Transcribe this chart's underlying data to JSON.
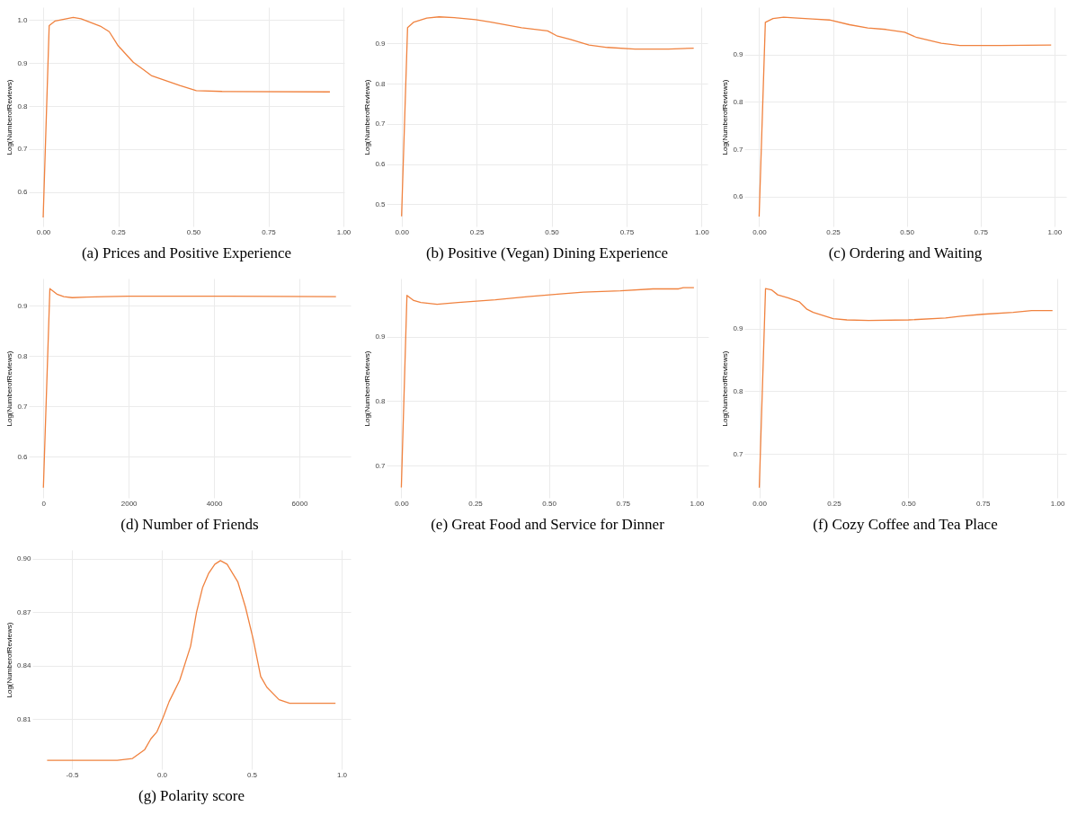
{
  "chart_data": [
    {
      "type": "line",
      "title": "(a) Prices and Positive Experience",
      "ylabel": "Log(NumberofReviews)",
      "grid": true,
      "xlim": [
        -0.048,
        1.003
      ],
      "ylim": [
        0.52,
        1.03
      ],
      "xticks": [
        {
          "value": 0,
          "label": "0.00"
        },
        0.25,
        {
          "value": 0.5,
          "label": "0.50"
        },
        0.75,
        {
          "value": 1,
          "label": "1.00"
        }
      ],
      "yticks": [
        0.6,
        0.7,
        0.8,
        0.9,
        {
          "value": 1,
          "label": "1.0"
        }
      ],
      "x": [
        0,
        0.02,
        0.04,
        0.1,
        0.126,
        0.19,
        0.22,
        0.25,
        0.3,
        0.335,
        0.36,
        0.455,
        0.51,
        0.596,
        0.955
      ],
      "series": [
        {
          "color": "#f0823f",
          "values": [
            0.541,
            0.987,
            0.998,
            1.006,
            1.003,
            0.986,
            0.973,
            0.94,
            0.902,
            0.884,
            0.871,
            0.848,
            0.836,
            0.834,
            0.833
          ]
        }
      ]
    },
    {
      "type": "line",
      "title": "(b) Positive (Vegan) Dining Experience",
      "ylabel": "Log(NumberofReviews)",
      "grid": true,
      "xlim": [
        -0.05,
        1.02
      ],
      "ylim": [
        0.445,
        0.99
      ],
      "xticks": [
        {
          "value": 0,
          "label": "0.00"
        },
        0.25,
        {
          "value": 0.5,
          "label": "0.50"
        },
        0.75,
        {
          "value": 1,
          "label": "1.00"
        }
      ],
      "yticks": [
        0.5,
        0.6,
        0.7,
        0.8,
        0.9
      ],
      "x": [
        0,
        0.02,
        0.041,
        0.084,
        0.125,
        0.176,
        0.247,
        0.298,
        0.4,
        0.487,
        0.517,
        0.563,
        0.625,
        0.686,
        0.778,
        0.89,
        0.974
      ],
      "series": [
        {
          "color": "#f0823f",
          "values": [
            0.47,
            0.939,
            0.953,
            0.963,
            0.966,
            0.964,
            0.959,
            0.953,
            0.939,
            0.931,
            0.919,
            0.91,
            0.896,
            0.89,
            0.886,
            0.886,
            0.888
          ]
        }
      ]
    },
    {
      "type": "line",
      "title": "(c) Ordering and Waiting",
      "ylabel": "Log(NumberofReviews)",
      "grid": true,
      "xlim": [
        -0.05,
        1.04
      ],
      "ylim": [
        0.537,
        1.0
      ],
      "xticks": [
        {
          "value": 0,
          "label": "0.00"
        },
        0.25,
        {
          "value": 0.5,
          "label": "0.50"
        },
        0.75,
        {
          "value": 1,
          "label": "1.00"
        }
      ],
      "yticks": [
        0.6,
        0.7,
        0.8,
        0.9
      ],
      "x": [
        0,
        0.021,
        0.047,
        0.083,
        0.13,
        0.181,
        0.238,
        0.306,
        0.368,
        0.43,
        0.493,
        0.534,
        0.617,
        0.68,
        0.815,
        0.989
      ],
      "series": [
        {
          "color": "#f0823f",
          "values": [
            0.558,
            0.968,
            0.976,
            0.979,
            0.977,
            0.975,
            0.973,
            0.963,
            0.956,
            0.953,
            0.947,
            0.936,
            0.924,
            0.919,
            0.919,
            0.92
          ]
        }
      ]
    },
    {
      "type": "line",
      "title": "(d) Number of Friends",
      "ylabel": "Log(NumberofReviews)",
      "grid": true,
      "xlim": [
        -343,
        7203
      ],
      "ylim": [
        0.518,
        0.954
      ],
      "xticks": [
        0,
        2000,
        4000,
        6000
      ],
      "yticks": [
        0.6,
        0.7,
        0.8,
        0.9
      ],
      "x": [
        0,
        152,
        316,
        479,
        675,
        1002,
        1437,
        1982,
        3615,
        6860
      ],
      "series": [
        {
          "color": "#f0823f",
          "values": [
            0.538,
            0.934,
            0.923,
            0.918,
            0.916,
            0.917,
            0.918,
            0.919,
            0.919,
            0.918
          ]
        }
      ]
    },
    {
      "type": "line",
      "title": "(e) Great Food and Service for Dinner",
      "ylabel": "Log(NumberofReviews)",
      "grid": true,
      "xlim": [
        -0.05,
        1.04
      ],
      "ylim": [
        0.65,
        0.99
      ],
      "xticks": [
        {
          "value": 0,
          "label": "0.00"
        },
        0.25,
        {
          "value": 0.5,
          "label": "0.50"
        },
        0.75,
        {
          "value": 1,
          "label": "1.00"
        }
      ],
      "yticks": [
        0.7,
        0.8,
        0.9
      ],
      "x": [
        0,
        0.019,
        0.042,
        0.066,
        0.121,
        0.192,
        0.318,
        0.428,
        0.538,
        0.616,
        0.742,
        0.852,
        0.939,
        0.955,
        0.991
      ],
      "series": [
        {
          "color": "#f0823f",
          "values": [
            0.666,
            0.964,
            0.956,
            0.953,
            0.95,
            0.953,
            0.957,
            0.962,
            0.966,
            0.969,
            0.971,
            0.974,
            0.974,
            0.976,
            0.976
          ]
        }
      ]
    },
    {
      "type": "line",
      "title": "(f) Cozy Coffee and Tea Place",
      "ylabel": "Log(NumberofReviews)",
      "grid": true,
      "xlim": [
        -0.05,
        1.03
      ],
      "ylim": [
        0.63,
        0.98
      ],
      "xticks": [
        {
          "value": 0,
          "label": "0.00"
        },
        0.25,
        {
          "value": 0.5,
          "label": "0.50"
        },
        0.75,
        {
          "value": 1,
          "label": "1.00"
        }
      ],
      "yticks": [
        0.7,
        0.8,
        0.9
      ],
      "x": [
        0,
        0.021,
        0.041,
        0.062,
        0.098,
        0.134,
        0.16,
        0.181,
        0.248,
        0.294,
        0.367,
        0.501,
        0.625,
        0.676,
        0.749,
        0.852,
        0.914,
        0.984
      ],
      "series": [
        {
          "color": "#f0823f",
          "values": [
            0.646,
            0.964,
            0.962,
            0.954,
            0.949,
            0.943,
            0.931,
            0.926,
            0.916,
            0.914,
            0.913,
            0.914,
            0.917,
            0.92,
            0.923,
            0.926,
            0.929,
            0.929
          ]
        }
      ]
    },
    {
      "type": "line",
      "title": "(g) Polarity score",
      "ylabel": "Log(NumberofReviews)",
      "grid": true,
      "xlim": [
        -0.72,
        1.05
      ],
      "ylim": [
        0.782,
        0.905
      ],
      "xticks": [
        -0.5,
        {
          "value": 0,
          "label": "0.0"
        },
        0.5,
        {
          "value": 1,
          "label": "1.0"
        }
      ],
      "yticks": [
        0.81,
        0.84,
        0.87,
        {
          "value": 0.9,
          "label": "0.90"
        }
      ],
      "x": [
        -0.638,
        -0.451,
        -0.384,
        -0.248,
        -0.163,
        -0.095,
        -0.061,
        -0.027,
        0.007,
        0.041,
        0.1,
        0.16,
        0.193,
        0.227,
        0.261,
        0.295,
        0.326,
        0.363,
        0.423,
        0.465,
        0.508,
        0.55,
        0.584,
        0.652,
        0.711,
        0.966
      ],
      "series": [
        {
          "color": "#f0823f",
          "values": [
            0.787,
            0.787,
            0.787,
            0.787,
            0.788,
            0.793,
            0.799,
            0.803,
            0.811,
            0.82,
            0.832,
            0.851,
            0.87,
            0.884,
            0.892,
            0.897,
            0.899,
            0.897,
            0.887,
            0.873,
            0.855,
            0.834,
            0.828,
            0.821,
            0.819,
            0.819
          ]
        }
      ]
    }
  ]
}
